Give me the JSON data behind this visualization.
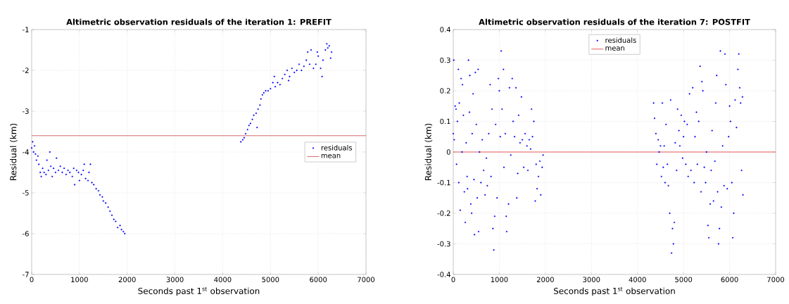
{
  "chart_data": [
    {
      "type": "scatter",
      "title": "Altimetric observation residuals of the iteration 1: PREFIT",
      "xlabel": "Seconds past 1$^{st}$ observation",
      "ylabel": "Residual (km)",
      "xlim": [
        0,
        7000
      ],
      "ylim": [
        -7,
        -1
      ],
      "xticks": [
        0,
        1000,
        2000,
        3000,
        4000,
        5000,
        6000,
        7000
      ],
      "yticks": [
        -7,
        -6,
        -5,
        -4,
        -3,
        -2,
        -1
      ],
      "grid": true,
      "legend": "right",
      "series": [
        {
          "name": "residuals",
          "color": "#0000ff",
          "marker": "circle",
          "x": [
            0,
            20,
            40,
            60,
            80,
            100,
            130,
            150,
            180,
            200,
            230,
            260,
            300,
            320,
            350,
            380,
            400,
            430,
            460,
            500,
            520,
            560,
            600,
            640,
            680,
            720,
            760,
            800,
            850,
            880,
            900,
            940,
            980,
            1000,
            1040,
            1080,
            1100,
            1130,
            1180,
            1200,
            1230,
            1260,
            1300,
            1350,
            1400,
            1430,
            1480,
            1500,
            1550,
            1600,
            1640,
            1680,
            1720,
            1760,
            1800,
            1850,
            1880,
            1920,
            1950,
            4380,
            4420,
            4450,
            4480,
            4520,
            4550,
            4580,
            4620,
            4650,
            4700,
            4720,
            4740,
            4780,
            4800,
            4830,
            4860,
            4900,
            4950,
            5000,
            5050,
            5080,
            5100,
            5150,
            5200,
            5250,
            5300,
            5350,
            5380,
            5400,
            5450,
            5500,
            5550,
            5600,
            5650,
            5700,
            5750,
            5780,
            5820,
            5850,
            5900,
            5950,
            5980,
            6000,
            6050,
            6080,
            6100,
            6150,
            6180,
            6200,
            6230,
            6260,
            6280
          ],
          "values": [
            -3.9,
            -3.75,
            -4.0,
            -3.85,
            -4.05,
            -4.2,
            -4.1,
            -4.3,
            -4.5,
            -4.6,
            -4.4,
            -4.5,
            -4.55,
            -4.2,
            -4.45,
            -4.0,
            -4.35,
            -4.6,
            -4.4,
            -4.5,
            -4.15,
            -4.45,
            -4.35,
            -4.5,
            -4.4,
            -4.55,
            -4.45,
            -4.5,
            -4.6,
            -4.4,
            -4.8,
            -4.45,
            -4.5,
            -4.7,
            -4.55,
            -4.45,
            -4.3,
            -4.65,
            -4.7,
            -4.5,
            -4.3,
            -4.75,
            -4.8,
            -4.9,
            -4.95,
            -5.05,
            -5.1,
            -5.2,
            -5.25,
            -5.35,
            -5.45,
            -5.55,
            -5.65,
            -5.7,
            -5.85,
            -5.8,
            -5.9,
            -5.95,
            -6.0,
            -3.75,
            -3.7,
            -3.65,
            -3.55,
            -3.45,
            -3.35,
            -3.3,
            -3.2,
            -3.1,
            -3.05,
            -3.4,
            -2.95,
            -2.85,
            -2.7,
            -2.6,
            -2.55,
            -2.5,
            -2.5,
            -2.45,
            -2.3,
            -2.15,
            -2.4,
            -2.3,
            -2.35,
            -2.2,
            -2.1,
            -2.0,
            -2.25,
            -2.15,
            -1.95,
            -2.05,
            -2.0,
            -1.85,
            -2.0,
            -1.9,
            -1.75,
            -1.55,
            -1.85,
            -1.5,
            -1.95,
            -1.85,
            -1.55,
            -1.65,
            -1.95,
            -2.15,
            -1.75,
            -1.5,
            -1.35,
            -1.45,
            -1.4,
            -1.7,
            -1.55
          ]
        },
        {
          "name": "mean",
          "type": "line",
          "color": "#cc4444",
          "marker": "none",
          "x": [
            0,
            7000
          ],
          "values": [
            -3.6,
            -3.6
          ]
        }
      ]
    },
    {
      "type": "scatter",
      "title": "Altimetric observation residuals of the iteration 7: POSTFIT",
      "xlabel": "Seconds past 1$^{st}$ observation",
      "ylabel": "Residual (km)",
      "xlim": [
        0,
        7000
      ],
      "ylim": [
        -0.4,
        0.4
      ],
      "xticks": [
        0,
        1000,
        2000,
        3000,
        4000,
        5000,
        6000,
        7000
      ],
      "yticks": [
        -0.4,
        -0.3,
        -0.2,
        -0.1,
        0,
        0.1,
        0.2,
        0.3,
        0.4
      ],
      "grid": true,
      "legend": "top",
      "series": [
        {
          "name": "residuals",
          "color": "#0000ff",
          "marker": "circle",
          "x": [
            0,
            10,
            20,
            40,
            60,
            70,
            90,
            110,
            120,
            130,
            150,
            170,
            190,
            200,
            220,
            240,
            260,
            280,
            300,
            310,
            330,
            350,
            360,
            380,
            400,
            410,
            430,
            450,
            460,
            480,
            500,
            520,
            540,
            550,
            570,
            600,
            630,
            660,
            690,
            720,
            740,
            770,
            800,
            820,
            840,
            860,
            880,
            900,
            920,
            950,
            980,
            1000,
            1020,
            1040,
            1060,
            1090,
            1100,
            1130,
            1150,
            1160,
            1200,
            1220,
            1250,
            1280,
            1300,
            1330,
            1360,
            1380,
            1400,
            1420,
            1450,
            1480,
            1500,
            1530,
            1560,
            1600,
            1620,
            1650,
            1680,
            1700,
            1720,
            1750,
            1780,
            1800,
            1820,
            1850,
            1880,
            1900,
            1930,
            1950,
            4350,
            4370,
            4400,
            4420,
            4450,
            4470,
            4500,
            4520,
            4540,
            4560,
            4580,
            4600,
            4620,
            4650,
            4670,
            4700,
            4720,
            4740,
            4760,
            4780,
            4800,
            4820,
            4850,
            4870,
            4900,
            4920,
            4950,
            4980,
            5000,
            5020,
            5050,
            5080,
            5100,
            5130,
            5160,
            5200,
            5230,
            5250,
            5280,
            5300,
            5330,
            5360,
            5380,
            5400,
            5420,
            5450,
            5480,
            5500,
            5530,
            5550,
            5580,
            5600,
            5620,
            5650,
            5680,
            5700,
            5720,
            5740,
            5760,
            5780,
            5800,
            5820,
            5850,
            5880,
            5900,
            5920,
            5950,
            5980,
            6000,
            6020,
            6050,
            6070,
            6090,
            6120,
            6150,
            6180,
            6200,
            6220,
            6240,
            6260,
            6280,
            6290
          ],
          "values": [
            0.06,
            0.3,
            0.04,
            0.15,
            0.14,
            -0.04,
            0.1,
            0.27,
            -0.1,
            0.16,
            -0.19,
            0.24,
            0.0,
            0.22,
            0.12,
            -0.13,
            -0.23,
            0.03,
            -0.08,
            -0.12,
            0.3,
            0.13,
            0.25,
            -0.17,
            -0.2,
            0.06,
            0.19,
            -0.09,
            -0.27,
            0.26,
            0.09,
            -0.15,
            0.27,
            -0.26,
            0.0,
            -0.1,
            0.04,
            -0.06,
            -0.14,
            -0.02,
            -0.11,
            0.06,
            0.22,
            -0.08,
            0.14,
            -0.25,
            -0.32,
            -0.21,
            0.09,
            -0.15,
            0.24,
            0.2,
            0.05,
            0.33,
            0.14,
            0.27,
            -0.05,
            0.06,
            -0.21,
            -0.26,
            -0.17,
            0.21,
            -0.01,
            0.24,
            0.1,
            0.05,
            0.21,
            -0.15,
            -0.07,
            0.12,
            0.03,
            0.18,
            0.04,
            -0.05,
            0.06,
            0.02,
            -0.06,
            0.04,
            0.01,
            0.14,
            0.05,
            0.1,
            -0.16,
            -0.04,
            -0.12,
            -0.08,
            -0.03,
            -0.14,
            -0.05,
            -0.01,
            0.16,
            0.11,
            0.06,
            -0.04,
            0.04,
            0.0,
            0.02,
            -0.08,
            0.16,
            -0.05,
            0.02,
            -0.1,
            0.09,
            -0.04,
            -0.11,
            -0.2,
            0.17,
            -0.33,
            -0.25,
            -0.3,
            -0.23,
            0.03,
            -0.06,
            0.14,
            0.07,
            0.02,
            0.12,
            -0.02,
            0.05,
            0.1,
            -0.04,
            0.09,
            -0.08,
            0.19,
            -0.06,
            0.21,
            -0.1,
            0.05,
            0.13,
            -0.04,
            0.1,
            0.28,
            -0.13,
            0.23,
            0.2,
            -0.05,
            -0.1,
            0.0,
            -0.24,
            -0.28,
            -0.17,
            -0.06,
            0.07,
            -0.16,
            -0.03,
            0.16,
            0.25,
            -0.13,
            -0.3,
            -0.25,
            0.33,
            -0.18,
            0.02,
            -0.11,
            0.32,
            0.22,
            -0.12,
            0.05,
            0.15,
            0.1,
            -0.1,
            -0.28,
            -0.2,
            0.17,
            0.08,
            0.27,
            0.32,
            0.21,
            0.16,
            -0.06,
            0.18,
            -0.14
          ]
        },
        {
          "name": "mean",
          "type": "line",
          "color": "#dd3333",
          "marker": "none",
          "x": [
            0,
            7000
          ],
          "values": [
            0,
            0
          ]
        }
      ]
    }
  ]
}
